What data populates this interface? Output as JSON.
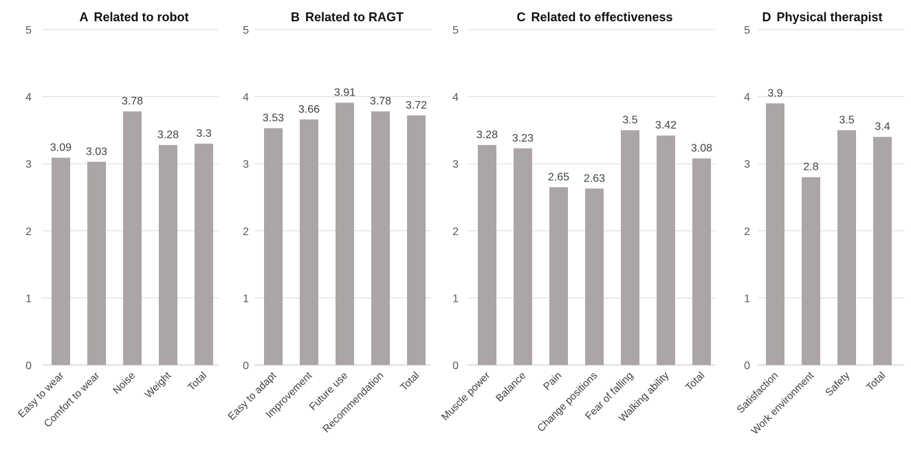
{
  "colors": {
    "bar": "#aba6a5",
    "grid": "#d9d9d9",
    "text": "#404040",
    "axis_text": "#595959"
  },
  "chart_data": [
    {
      "type": "bar",
      "letter": "A",
      "title": "Related to robot",
      "categories": [
        "Easy to wear",
        "Comfort to wear",
        "Noise",
        "Weight",
        "Total"
      ],
      "values": [
        3.09,
        3.03,
        3.78,
        3.28,
        3.3
      ],
      "value_labels": [
        "3.09",
        "3.03",
        "3.78",
        "3.28",
        "3.3"
      ],
      "ylim": [
        0,
        5
      ],
      "yticks": [
        0,
        1,
        2,
        3,
        4,
        5
      ],
      "grid": true
    },
    {
      "type": "bar",
      "letter": "B",
      "title": "Related to RAGT",
      "categories": [
        "Easy to adapt",
        "Improvement",
        "Future use",
        "Recommendation",
        "Total"
      ],
      "values": [
        3.53,
        3.66,
        3.91,
        3.78,
        3.72
      ],
      "value_labels": [
        "3.53",
        "3.66",
        "3.91",
        "3.78",
        "3.72"
      ],
      "ylim": [
        0,
        5
      ],
      "yticks": [
        0,
        1,
        2,
        3,
        4,
        5
      ],
      "grid": true
    },
    {
      "type": "bar",
      "letter": "C",
      "title": "Related to effectiveness",
      "categories": [
        "Muscle power",
        "Balance",
        "Pain",
        "Change positions",
        "Fear of falling",
        "Walking ability",
        "Total"
      ],
      "values": [
        3.28,
        3.23,
        2.65,
        2.63,
        3.5,
        3.42,
        3.08
      ],
      "value_labels": [
        "3.28",
        "3.23",
        "2.65",
        "2.63",
        "3.5",
        "3.42",
        "3.08"
      ],
      "ylim": [
        0,
        5
      ],
      "yticks": [
        0,
        1,
        2,
        3,
        4,
        5
      ],
      "grid": true
    },
    {
      "type": "bar",
      "letter": "D",
      "title": "Physical therapist",
      "categories": [
        "Satisfaction",
        "Work environment",
        "Safety",
        "Total"
      ],
      "values": [
        3.9,
        2.8,
        3.5,
        3.4
      ],
      "value_labels": [
        "3.9",
        "2.8",
        "3.5",
        "3.4"
      ],
      "ylim": [
        0,
        5
      ],
      "yticks": [
        0,
        1,
        2,
        3,
        4,
        5
      ],
      "grid": true
    }
  ]
}
